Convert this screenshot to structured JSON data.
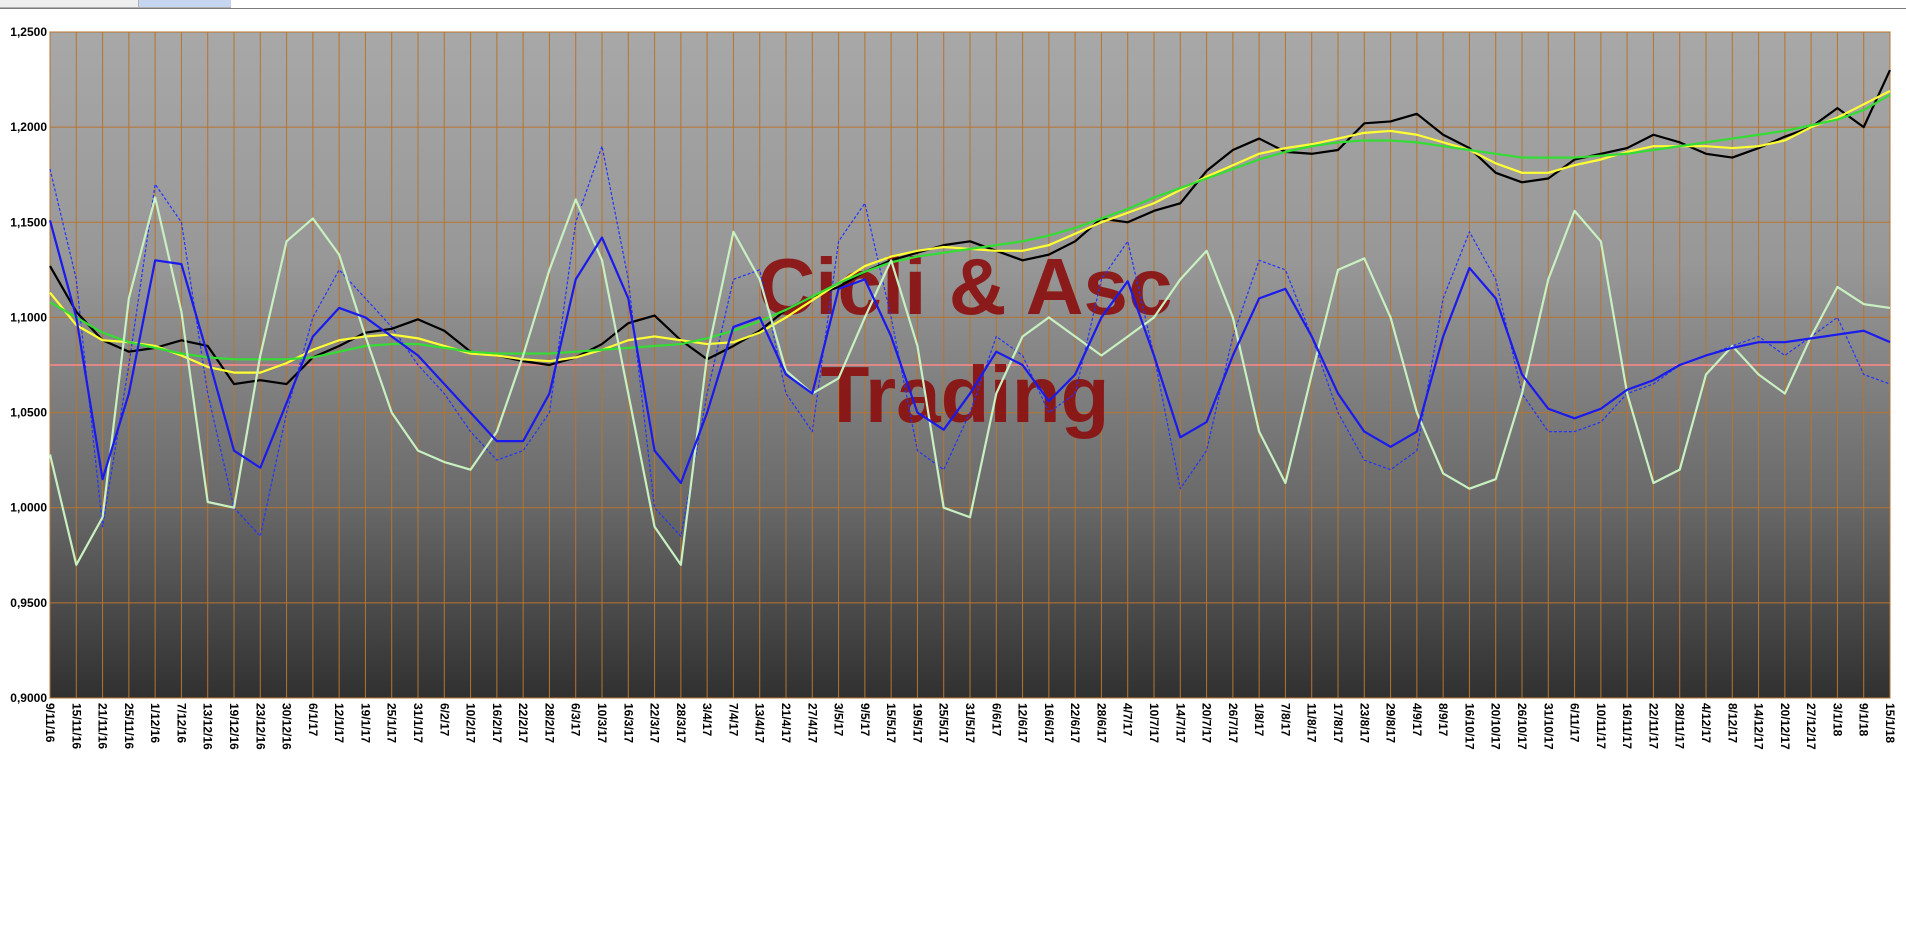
{
  "chart_data": {
    "type": "line",
    "title": "",
    "watermark": [
      "Cicli & Asc",
      "Trading"
    ],
    "ylim": [
      0.9,
      1.25
    ],
    "y_ticks": [
      "0,9000",
      "0,9500",
      "1,0000",
      "1,0500",
      "1,1000",
      "1,1500",
      "1,2000",
      "1,2500"
    ],
    "y_tick_values": [
      0.9,
      0.95,
      1.0,
      1.05,
      1.1,
      1.15,
      1.2,
      1.25
    ],
    "reference_line": 1.075,
    "x_ticks": [
      "9/11/16",
      "15/11/16",
      "21/11/16",
      "25/11/16",
      "1/12/16",
      "7/12/16",
      "13/12/16",
      "19/12/16",
      "23/12/16",
      "30/12/16",
      "6/1/17",
      "12/1/17",
      "19/1/17",
      "25/1/17",
      "31/1/17",
      "6/2/17",
      "10/2/17",
      "16/2/17",
      "22/2/17",
      "28/2/17",
      "6/3/17",
      "10/3/17",
      "16/3/17",
      "22/3/17",
      "28/3/17",
      "3/4/17",
      "7/4/17",
      "13/4/17",
      "21/4/17",
      "27/4/17",
      "3/5/17",
      "9/5/17",
      "15/5/17",
      "19/5/17",
      "25/5/17",
      "31/5/17",
      "6/6/17",
      "12/6/17",
      "16/6/17",
      "22/6/17",
      "28/6/17",
      "4/7/17",
      "10/7/17",
      "14/7/17",
      "20/7/17",
      "26/7/17",
      "1/8/17",
      "7/8/17",
      "11/8/17",
      "17/8/17",
      "23/8/17",
      "29/8/17",
      "4/9/17",
      "8/9/17",
      "16/10/17",
      "20/10/17",
      "26/10/17",
      "31/10/17",
      "6/11/17",
      "10/11/17",
      "16/11/17",
      "22/11/17",
      "28/11/17",
      "4/12/17",
      "8/12/17",
      "14/12/17",
      "20/12/17",
      "27/12/17",
      "3/1/18",
      "9/1/18",
      "15/1/18"
    ],
    "grid": true,
    "legend": "none",
    "series": [
      {
        "color": "#000000",
        "style": "solid",
        "x": [
          0,
          1,
          2,
          3,
          4,
          5,
          6,
          7,
          8,
          9,
          10,
          11,
          12,
          13,
          14,
          15,
          16,
          17,
          18,
          19,
          20,
          21,
          22,
          23,
          24,
          25,
          26,
          27,
          28,
          29,
          30,
          31,
          32,
          33,
          34,
          35,
          36,
          37,
          38,
          39,
          40,
          41,
          42,
          43,
          44,
          45,
          46,
          47,
          48,
          49,
          50,
          51,
          52,
          53,
          54,
          55,
          56,
          57,
          58,
          59,
          60,
          61,
          62,
          63,
          64,
          65,
          66,
          67,
          68,
          69,
          70
        ],
        "values": [
          1.127,
          1.103,
          1.088,
          1.082,
          1.084,
          1.088,
          1.085,
          1.065,
          1.067,
          1.065,
          1.079,
          1.085,
          1.092,
          1.094,
          1.099,
          1.093,
          1.082,
          1.08,
          1.077,
          1.075,
          1.079,
          1.086,
          1.097,
          1.101,
          1.088,
          1.078,
          1.085,
          1.093,
          1.104,
          1.111,
          1.116,
          1.124,
          1.13,
          1.134,
          1.138,
          1.14,
          1.135,
          1.13,
          1.133,
          1.14,
          1.152,
          1.15,
          1.156,
          1.16,
          1.177,
          1.188,
          1.194,
          1.187,
          1.186,
          1.188,
          1.202,
          1.203,
          1.207,
          1.196,
          1.189,
          1.176,
          1.171,
          1.173,
          1.183,
          1.186,
          1.189,
          1.196,
          1.192,
          1.186,
          1.184,
          1.189,
          1.195,
          1.2,
          1.21,
          1.2,
          1.23
        ]
      },
      {
        "color": "#ffff33",
        "style": "solid",
        "x": [
          0,
          1,
          2,
          3,
          4,
          5,
          6,
          7,
          8,
          9,
          10,
          11,
          12,
          13,
          14,
          15,
          16,
          17,
          18,
          19,
          20,
          21,
          22,
          23,
          24,
          25,
          26,
          27,
          28,
          29,
          30,
          31,
          32,
          33,
          34,
          35,
          36,
          37,
          38,
          39,
          40,
          41,
          42,
          43,
          44,
          45,
          46,
          47,
          48,
          49,
          50,
          51,
          52,
          53,
          54,
          55,
          56,
          57,
          58,
          59,
          60,
          61,
          62,
          63,
          64,
          65,
          66,
          67,
          68,
          69,
          70
        ],
        "values": [
          1.113,
          1.096,
          1.088,
          1.087,
          1.085,
          1.08,
          1.074,
          1.071,
          1.071,
          1.076,
          1.083,
          1.088,
          1.09,
          1.091,
          1.089,
          1.085,
          1.081,
          1.08,
          1.078,
          1.077,
          1.079,
          1.083,
          1.088,
          1.09,
          1.088,
          1.086,
          1.087,
          1.092,
          1.1,
          1.109,
          1.118,
          1.127,
          1.132,
          1.135,
          1.137,
          1.136,
          1.135,
          1.135,
          1.138,
          1.144,
          1.15,
          1.155,
          1.16,
          1.167,
          1.174,
          1.18,
          1.186,
          1.189,
          1.191,
          1.194,
          1.197,
          1.198,
          1.196,
          1.192,
          1.188,
          1.181,
          1.176,
          1.176,
          1.18,
          1.183,
          1.187,
          1.19,
          1.19,
          1.19,
          1.189,
          1.19,
          1.193,
          1.2,
          1.205,
          1.212,
          1.219
        ]
      },
      {
        "color": "#33dd33",
        "style": "solid",
        "x": [
          0,
          1,
          2,
          3,
          4,
          5,
          6,
          7,
          8,
          9,
          10,
          11,
          12,
          13,
          14,
          15,
          16,
          17,
          18,
          19,
          20,
          21,
          22,
          23,
          24,
          25,
          26,
          27,
          28,
          29,
          30,
          31,
          32,
          33,
          34,
          35,
          36,
          37,
          38,
          39,
          40,
          41,
          42,
          43,
          44,
          45,
          46,
          47,
          48,
          49,
          50,
          51,
          52,
          53,
          54,
          55,
          56,
          57,
          58,
          59,
          60,
          61,
          62,
          63,
          64,
          65,
          66,
          67,
          68,
          69,
          70
        ],
        "values": [
          1.108,
          1.1,
          1.092,
          1.087,
          1.084,
          1.081,
          1.079,
          1.078,
          1.078,
          1.078,
          1.079,
          1.082,
          1.085,
          1.086,
          1.086,
          1.084,
          1.082,
          1.081,
          1.081,
          1.081,
          1.082,
          1.083,
          1.084,
          1.085,
          1.086,
          1.089,
          1.093,
          1.098,
          1.104,
          1.111,
          1.118,
          1.124,
          1.129,
          1.132,
          1.134,
          1.136,
          1.138,
          1.14,
          1.143,
          1.147,
          1.152,
          1.157,
          1.163,
          1.168,
          1.173,
          1.178,
          1.183,
          1.187,
          1.19,
          1.192,
          1.193,
          1.193,
          1.192,
          1.19,
          1.188,
          1.186,
          1.184,
          1.184,
          1.184,
          1.185,
          1.186,
          1.188,
          1.19,
          1.192,
          1.194,
          1.196,
          1.198,
          1.201,
          1.204,
          1.209,
          1.217
        ]
      },
      {
        "color": "#c8f0c0",
        "style": "solid",
        "x": [
          0,
          1,
          2,
          3,
          4,
          5,
          6,
          7,
          8,
          9,
          10,
          11,
          12,
          13,
          14,
          15,
          16,
          17,
          18,
          19,
          20,
          21,
          22,
          23,
          24,
          25,
          26,
          27,
          28,
          29,
          30,
          31,
          32,
          33,
          34,
          35,
          36,
          37,
          38,
          39,
          40,
          41,
          42,
          43,
          44,
          45,
          46,
          47,
          48,
          49,
          50,
          51,
          52,
          53,
          54,
          55,
          56,
          57,
          58,
          59,
          60,
          61,
          62,
          63,
          64,
          65,
          66,
          67,
          68,
          69,
          70
        ],
        "values": [
          1.028,
          0.97,
          0.995,
          1.11,
          1.163,
          1.103,
          1.003,
          1.0,
          1.08,
          1.14,
          1.152,
          1.133,
          1.09,
          1.05,
          1.03,
          1.024,
          1.02,
          1.04,
          1.08,
          1.125,
          1.162,
          1.13,
          1.06,
          0.99,
          0.97,
          1.08,
          1.145,
          1.12,
          1.072,
          1.06,
          1.068,
          1.1,
          1.13,
          1.085,
          1.0,
          0.995,
          1.06,
          1.09,
          1.1,
          1.09,
          1.08,
          1.09,
          1.1,
          1.12,
          1.135,
          1.1,
          1.04,
          1.013,
          1.07,
          1.125,
          1.131,
          1.1,
          1.05,
          1.018,
          1.01,
          1.015,
          1.06,
          1.12,
          1.156,
          1.14,
          1.06,
          1.013,
          1.02,
          1.07,
          1.085,
          1.07,
          1.06,
          1.09,
          1.116,
          1.107,
          1.105
        ]
      },
      {
        "color": "#1a1aee",
        "style": "solid",
        "x": [
          0,
          1,
          2,
          3,
          4,
          5,
          6,
          7,
          8,
          9,
          10,
          11,
          12,
          13,
          14,
          15,
          16,
          17,
          18,
          19,
          20,
          21,
          22,
          23,
          24,
          25,
          26,
          27,
          28,
          29,
          30,
          31,
          32,
          33,
          34,
          35,
          36,
          37,
          38,
          39,
          40,
          41,
          42,
          43,
          44,
          45,
          46,
          47,
          48,
          49,
          50,
          51,
          52,
          53,
          54,
          55,
          56,
          57,
          58,
          59,
          60,
          61,
          62,
          63,
          64,
          65,
          66,
          67,
          68,
          69,
          70
        ],
        "values": [
          1.151,
          1.1,
          1.015,
          1.06,
          1.13,
          1.128,
          1.08,
          1.03,
          1.021,
          1.055,
          1.09,
          1.105,
          1.1,
          1.09,
          1.08,
          1.065,
          1.05,
          1.035,
          1.035,
          1.06,
          1.12,
          1.142,
          1.11,
          1.03,
          1.013,
          1.05,
          1.095,
          1.1,
          1.07,
          1.06,
          1.115,
          1.12,
          1.09,
          1.05,
          1.041,
          1.06,
          1.082,
          1.075,
          1.056,
          1.07,
          1.1,
          1.119,
          1.08,
          1.037,
          1.045,
          1.08,
          1.11,
          1.115,
          1.09,
          1.06,
          1.04,
          1.032,
          1.04,
          1.09,
          1.126,
          1.11,
          1.07,
          1.052,
          1.047,
          1.052,
          1.062,
          1.067,
          1.075,
          1.08,
          1.084,
          1.087,
          1.087,
          1.089,
          1.091,
          1.093,
          1.087
        ]
      },
      {
        "color": "#2233ff",
        "style": "dashed",
        "x": [
          0,
          1,
          2,
          3,
          4,
          5,
          6,
          7,
          8,
          9,
          10,
          11,
          12,
          13,
          14,
          15,
          16,
          17,
          18,
          19,
          20,
          21,
          22,
          23,
          24,
          25,
          26,
          27,
          28,
          29,
          30,
          31,
          32,
          33,
          34,
          35,
          36,
          37,
          38,
          39,
          40,
          41,
          42,
          43,
          44,
          45,
          46,
          47,
          48,
          49,
          50,
          51,
          52,
          53,
          54,
          55,
          56,
          57,
          58,
          59,
          60,
          61,
          62,
          63,
          64,
          65,
          66,
          67,
          68,
          69,
          70
        ],
        "values": [
          1.178,
          1.12,
          0.99,
          1.075,
          1.17,
          1.15,
          1.06,
          1.0,
          0.985,
          1.05,
          1.1,
          1.125,
          1.11,
          1.095,
          1.075,
          1.06,
          1.04,
          1.025,
          1.03,
          1.05,
          1.15,
          1.19,
          1.12,
          1.0,
          0.985,
          1.06,
          1.12,
          1.125,
          1.06,
          1.04,
          1.14,
          1.16,
          1.1,
          1.03,
          1.02,
          1.05,
          1.09,
          1.08,
          1.05,
          1.06,
          1.12,
          1.14,
          1.08,
          1.01,
          1.03,
          1.09,
          1.13,
          1.125,
          1.09,
          1.05,
          1.025,
          1.02,
          1.03,
          1.11,
          1.145,
          1.12,
          1.06,
          1.04,
          1.04,
          1.045,
          1.06,
          1.065,
          1.075,
          1.08,
          1.085,
          1.09,
          1.08,
          1.09,
          1.1,
          1.07,
          1.065
        ]
      }
    ]
  }
}
